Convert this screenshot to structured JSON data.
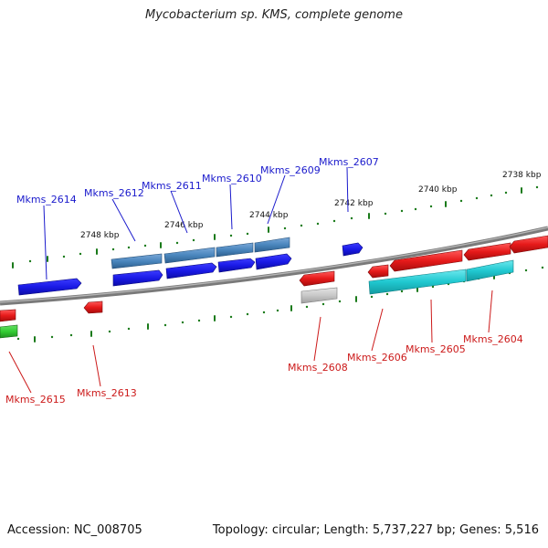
{
  "title": "Mycobacterium sp. KMS, complete genome",
  "footer": {
    "accession": "Accession: NC_008705",
    "stats": "Topology: circular; Length: 5,737,227 bp; Genes: 5,516"
  },
  "colors": {
    "forward_gene": "#1a1ae6",
    "forward_operon": "#4a86bd",
    "reverse_gene": "#e61a1a",
    "reverse_operon": "#20c8d0",
    "grey_feature": "#c8c8c8",
    "green_feature": "#33cc33",
    "forward_label": "#1a1acc",
    "reverse_label": "#cc1a1a"
  },
  "ruler": [
    "2738 kbp",
    "2740 kbp",
    "2742 kbp",
    "2744 kbp",
    "2746 kbp",
    "2748 kbp"
  ],
  "genes_top": [
    "Mkms_2607",
    "Mkms_2609",
    "Mkms_2610",
    "Mkms_2611",
    "Mkms_2612",
    "Mkms_2614"
  ],
  "genes_bottom": [
    "Mkms_2604",
    "Mkms_2605",
    "Mkms_2606",
    "Mkms_2608",
    "Mkms_2613",
    "Mkms_2615"
  ]
}
